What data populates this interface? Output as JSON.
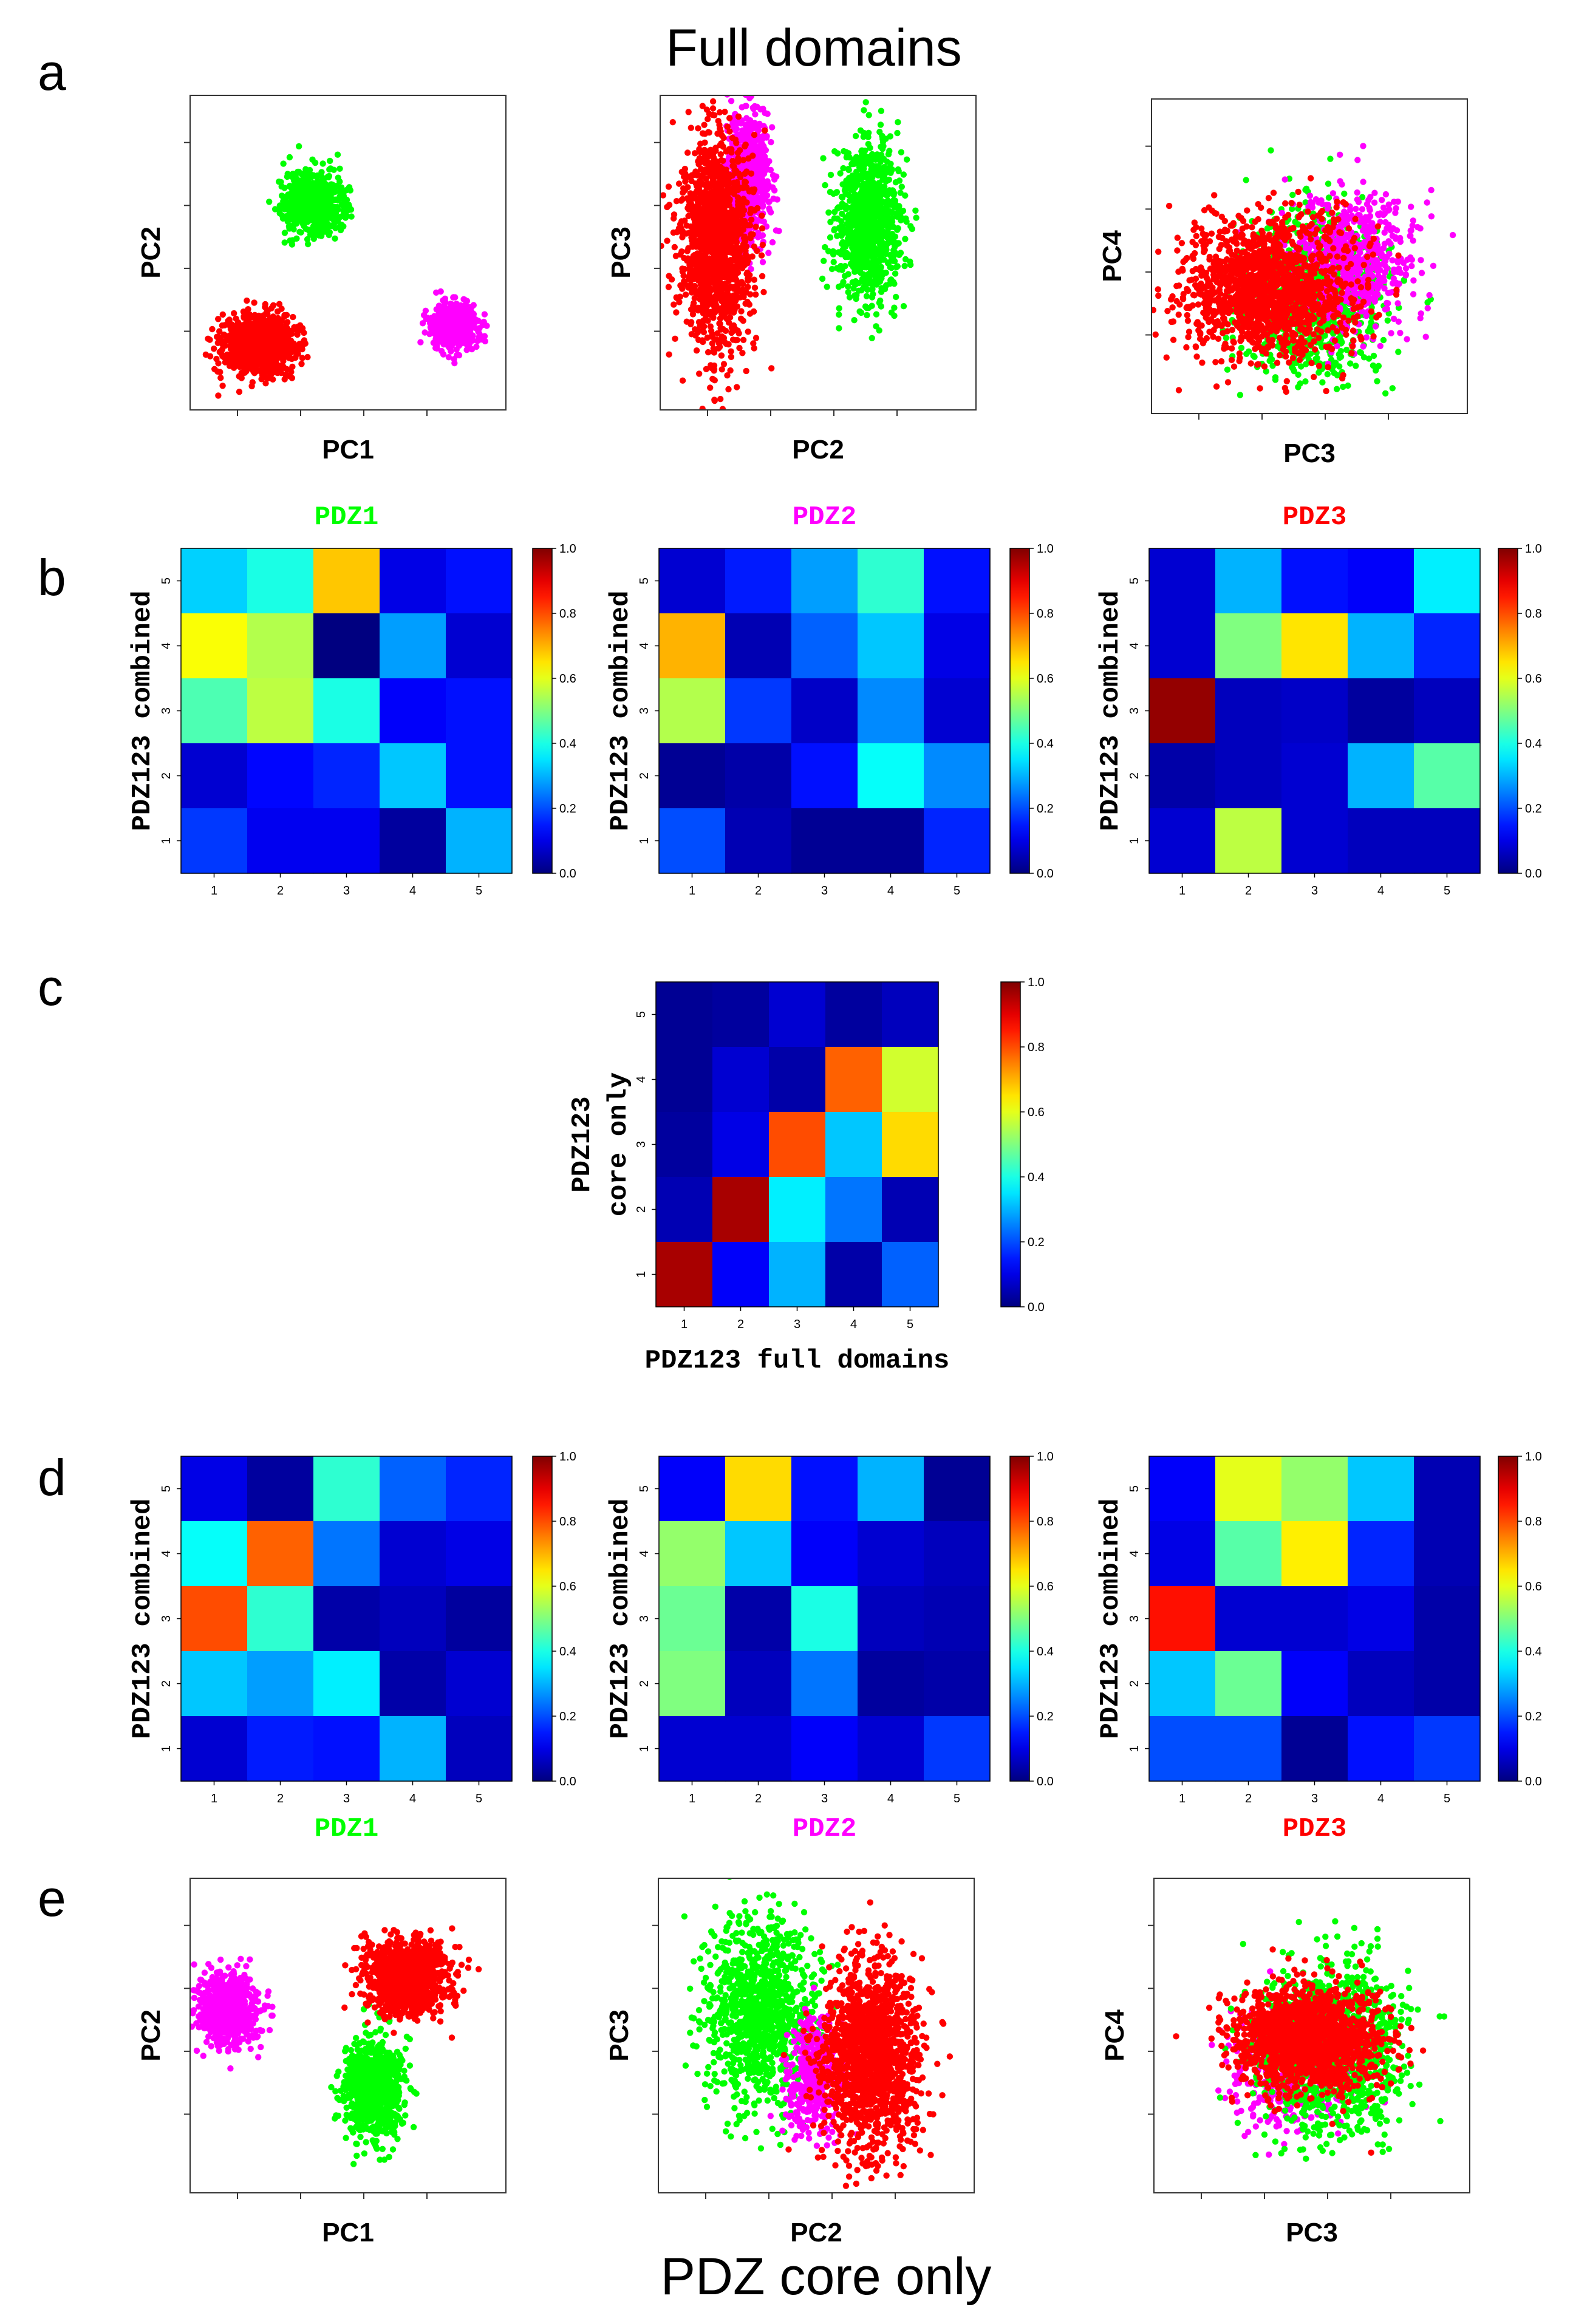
{
  "titles": {
    "top": "Full domains",
    "bottom": "PDZ core only"
  },
  "panel_letters": [
    "a",
    "b",
    "c",
    "d",
    "e"
  ],
  "colors": {
    "PDZ1": "#00ff00",
    "PDZ2": "#ff00ff",
    "PDZ3": "#ff0000"
  },
  "chart_data": [
    {
      "panel": "a",
      "type": "scatter",
      "xlabel": "PC1",
      "ylabel": "PC2",
      "xlim": [
        0,
        10
      ],
      "ylim": [
        0,
        10
      ],
      "ticks_labeled": false,
      "series": [
        {
          "name": "PDZ1",
          "color": "#00ff00",
          "points": 800,
          "center": [
            3.9,
            6.6
          ],
          "spread": [
            0.45,
            0.45
          ]
        },
        {
          "name": "PDZ2",
          "color": "#ff00ff",
          "points": 600,
          "center": [
            8.4,
            2.7
          ],
          "spread": [
            0.35,
            0.35
          ]
        },
        {
          "name": "PDZ3",
          "color": "#ff0000",
          "points": 1100,
          "center": [
            2.2,
            2.1
          ],
          "spread": [
            0.55,
            0.45
          ]
        }
      ]
    },
    {
      "panel": "a",
      "type": "scatter",
      "xlabel": "PC2",
      "ylabel": "PC3",
      "xlim": [
        0,
        10
      ],
      "ylim": [
        0,
        10
      ],
      "ticks_labeled": false,
      "series": [
        {
          "name": "PDZ2",
          "color": "#ff00ff",
          "points": 700,
          "center": [
            2.8,
            7.4
          ],
          "spread": [
            0.35,
            1.1
          ]
        },
        {
          "name": "PDZ1",
          "color": "#00ff00",
          "points": 1000,
          "center": [
            6.6,
            6.0
          ],
          "spread": [
            0.5,
            1.3
          ]
        },
        {
          "name": "PDZ3",
          "color": "#ff0000",
          "points": 1400,
          "center": [
            1.8,
            5.3
          ],
          "spread": [
            0.55,
            1.7
          ]
        }
      ]
    },
    {
      "panel": "a",
      "type": "scatter",
      "xlabel": "PC3",
      "ylabel": "PC4",
      "xlim": [
        0,
        10
      ],
      "ylim": [
        0,
        10
      ],
      "ticks_labeled": false,
      "series": [
        {
          "name": "PDZ1",
          "color": "#00ff00",
          "points": 900,
          "center": [
            5.1,
            3.8
          ],
          "spread": [
            1.1,
            1.3
          ]
        },
        {
          "name": "PDZ2",
          "color": "#ff00ff",
          "points": 600,
          "center": [
            6.4,
            4.9
          ],
          "spread": [
            1.0,
            1.1
          ]
        },
        {
          "name": "PDZ3",
          "color": "#ff0000",
          "points": 1500,
          "center": [
            3.7,
            4.0
          ],
          "spread": [
            1.3,
            1.1
          ]
        }
      ]
    },
    {
      "panel": "b",
      "type": "heatmap",
      "title": "PDZ1",
      "title_color": "#00ff00",
      "xlabel": "",
      "ylabel": "PDZ123 combined",
      "x_ticks": [
        "1",
        "2",
        "3",
        "4",
        "5"
      ],
      "y_ticks": [
        "1",
        "2",
        "3",
        "4",
        "5"
      ],
      "colorbar": {
        "min": 0.0,
        "max": 1.0,
        "ticks": [
          "0.0",
          "0.2",
          "0.4",
          "0.6",
          "0.8",
          "1.0"
        ]
      },
      "rows_top_to_bottom": [
        [
          0.33,
          0.4,
          0.68,
          0.1,
          0.14
        ],
        [
          0.62,
          0.55,
          0.0,
          0.28,
          0.08
        ],
        [
          0.45,
          0.56,
          0.4,
          0.12,
          0.14
        ],
        [
          0.08,
          0.13,
          0.16,
          0.32,
          0.14
        ],
        [
          0.18,
          0.11,
          0.11,
          0.03,
          0.3
        ]
      ]
    },
    {
      "panel": "b",
      "type": "heatmap",
      "title": "PDZ2",
      "title_color": "#ff00ff",
      "xlabel": "",
      "ylabel": "PDZ123 combined",
      "x_ticks": [
        "1",
        "2",
        "3",
        "4",
        "5"
      ],
      "y_ticks": [
        "1",
        "2",
        "3",
        "4",
        "5"
      ],
      "colorbar": {
        "min": 0.0,
        "max": 1.0,
        "ticks": [
          "0.0",
          "0.2",
          "0.4",
          "0.6",
          "0.8",
          "1.0"
        ]
      },
      "rows_top_to_bottom": [
        [
          0.08,
          0.15,
          0.28,
          0.42,
          0.14
        ],
        [
          0.7,
          0.05,
          0.22,
          0.32,
          0.1
        ],
        [
          0.55,
          0.18,
          0.07,
          0.26,
          0.08
        ],
        [
          0.02,
          0.04,
          0.14,
          0.38,
          0.26
        ],
        [
          0.2,
          0.05,
          0.02,
          0.02,
          0.16
        ]
      ]
    },
    {
      "panel": "b",
      "type": "heatmap",
      "title": "PDZ3",
      "title_color": "#ff0000",
      "xlabel": "",
      "ylabel": "PDZ123 combined",
      "x_ticks": [
        "1",
        "2",
        "3",
        "4",
        "5"
      ],
      "y_ticks": [
        "1",
        "2",
        "3",
        "4",
        "5"
      ],
      "colorbar": {
        "min": 0.0,
        "max": 1.0,
        "ticks": [
          "0.0",
          "0.2",
          "0.4",
          "0.6",
          "0.8",
          "1.0"
        ]
      },
      "rows_top_to_bottom": [
        [
          0.08,
          0.3,
          0.14,
          0.12,
          0.36
        ],
        [
          0.08,
          0.5,
          0.65,
          0.3,
          0.16
        ],
        [
          0.98,
          0.06,
          0.07,
          0.03,
          0.06
        ],
        [
          0.04,
          0.06,
          0.08,
          0.3,
          0.46
        ],
        [
          0.08,
          0.56,
          0.08,
          0.06,
          0.06
        ]
      ]
    },
    {
      "panel": "c",
      "type": "heatmap",
      "title": "",
      "xlabel": "PDZ123 full domains",
      "ylabel": [
        "PDZ123",
        "core only"
      ],
      "x_ticks": [
        "1",
        "2",
        "3",
        "4",
        "5"
      ],
      "y_ticks": [
        "1",
        "2",
        "3",
        "4",
        "5"
      ],
      "colorbar": {
        "min": 0.0,
        "max": 1.0,
        "ticks": [
          "0.0",
          "0.2",
          "0.4",
          "0.6",
          "0.8",
          "1.0"
        ]
      },
      "rows_top_to_bottom": [
        [
          0.02,
          0.03,
          0.08,
          0.03,
          0.06
        ],
        [
          0.02,
          0.08,
          0.04,
          0.78,
          0.58
        ],
        [
          0.03,
          0.1,
          0.8,
          0.32,
          0.66
        ],
        [
          0.05,
          0.96,
          0.36,
          0.24,
          0.05
        ],
        [
          0.96,
          0.12,
          0.3,
          0.04,
          0.22
        ]
      ]
    },
    {
      "panel": "d",
      "type": "heatmap",
      "title": "PDZ1",
      "title_color": "#00ff00",
      "xlabel": "",
      "ylabel": "PDZ123 combined",
      "x_ticks": [
        "1",
        "2",
        "3",
        "4",
        "5"
      ],
      "y_ticks": [
        "1",
        "2",
        "3",
        "4",
        "5"
      ],
      "colorbar": {
        "min": 0.0,
        "max": 1.0,
        "ticks": [
          "0.0",
          "0.2",
          "0.4",
          "0.6",
          "0.8",
          "1.0"
        ]
      },
      "rows_top_to_bottom": [
        [
          0.1,
          0.03,
          0.42,
          0.22,
          0.16
        ],
        [
          0.38,
          0.78,
          0.24,
          0.08,
          0.1
        ],
        [
          0.8,
          0.42,
          0.04,
          0.06,
          0.03
        ],
        [
          0.32,
          0.28,
          0.36,
          0.04,
          0.08
        ],
        [
          0.08,
          0.15,
          0.14,
          0.3,
          0.06
        ]
      ]
    },
    {
      "panel": "d",
      "type": "heatmap",
      "title": "PDZ2",
      "title_color": "#ff00ff",
      "xlabel": "",
      "ylabel": "PDZ123 combined",
      "x_ticks": [
        "1",
        "2",
        "3",
        "4",
        "5"
      ],
      "y_ticks": [
        "1",
        "2",
        "3",
        "4",
        "5"
      ],
      "colorbar": {
        "min": 0.0,
        "max": 1.0,
        "ticks": [
          "0.0",
          "0.2",
          "0.4",
          "0.6",
          "0.8",
          "1.0"
        ]
      },
      "rows_top_to_bottom": [
        [
          0.12,
          0.66,
          0.14,
          0.3,
          0.02
        ],
        [
          0.52,
          0.32,
          0.12,
          0.08,
          0.06
        ],
        [
          0.48,
          0.04,
          0.4,
          0.06,
          0.05
        ],
        [
          0.5,
          0.06,
          0.24,
          0.03,
          0.04
        ],
        [
          0.08,
          0.08,
          0.12,
          0.08,
          0.18
        ]
      ]
    },
    {
      "panel": "d",
      "type": "heatmap",
      "title": "PDZ3",
      "title_color": "#ff0000",
      "xlabel": "",
      "ylabel": "PDZ123 combined",
      "x_ticks": [
        "1",
        "2",
        "3",
        "4",
        "5"
      ],
      "y_ticks": [
        "1",
        "2",
        "3",
        "4",
        "5"
      ],
      "colorbar": {
        "min": 0.0,
        "max": 1.0,
        "ticks": [
          "0.0",
          "0.2",
          "0.4",
          "0.6",
          "0.8",
          "1.0"
        ]
      },
      "rows_top_to_bottom": [
        [
          0.12,
          0.6,
          0.52,
          0.32,
          0.05
        ],
        [
          0.1,
          0.46,
          0.64,
          0.16,
          0.05
        ],
        [
          0.86,
          0.08,
          0.08,
          0.1,
          0.04
        ],
        [
          0.32,
          0.48,
          0.12,
          0.06,
          0.04
        ],
        [
          0.2,
          0.2,
          0.02,
          0.14,
          0.18
        ]
      ]
    },
    {
      "panel": "e",
      "type": "scatter",
      "xlabel": "PC1",
      "ylabel": "PC2",
      "xlim": [
        0,
        10
      ],
      "ylim": [
        0,
        10
      ],
      "ticks_labeled": false,
      "series": [
        {
          "name": "PDZ2",
          "color": "#ff00ff",
          "points": 800,
          "center": [
            1.2,
            5.8
          ],
          "spread": [
            0.45,
            0.55
          ]
        },
        {
          "name": "PDZ1",
          "color": "#00ff00",
          "points": 900,
          "center": [
            5.8,
            3.3
          ],
          "spread": [
            0.45,
            0.75
          ]
        },
        {
          "name": "PDZ3",
          "color": "#ff0000",
          "points": 1100,
          "center": [
            6.9,
            6.8
          ],
          "spread": [
            0.65,
            0.55
          ]
        }
      ]
    },
    {
      "panel": "e",
      "type": "scatter",
      "xlabel": "PC2",
      "ylabel": "PC3",
      "xlim": [
        0,
        10
      ],
      "ylim": [
        0,
        10
      ],
      "ticks_labeled": false,
      "series": [
        {
          "name": "PDZ1",
          "color": "#00ff00",
          "points": 1100,
          "center": [
            3.2,
            5.7
          ],
          "spread": [
            0.9,
            1.5
          ]
        },
        {
          "name": "PDZ2",
          "color": "#ff00ff",
          "points": 400,
          "center": [
            4.9,
            3.6
          ],
          "spread": [
            0.45,
            0.9
          ]
        },
        {
          "name": "PDZ3",
          "color": "#ff0000",
          "points": 1500,
          "center": [
            6.7,
            4.3
          ],
          "spread": [
            0.75,
            1.5
          ]
        }
      ]
    },
    {
      "panel": "e",
      "type": "scatter",
      "xlabel": "PC3",
      "ylabel": "PC4",
      "xlim": [
        0,
        10
      ],
      "ylim": [
        0,
        10
      ],
      "ticks_labeled": false,
      "series": [
        {
          "name": "PDZ2",
          "color": "#ff00ff",
          "points": 400,
          "center": [
            4.3,
            3.9
          ],
          "spread": [
            0.9,
            0.9
          ]
        },
        {
          "name": "PDZ1",
          "color": "#00ff00",
          "points": 1000,
          "center": [
            5.7,
            4.6
          ],
          "spread": [
            1.2,
            1.4
          ]
        },
        {
          "name": "PDZ3",
          "color": "#ff0000",
          "points": 1600,
          "center": [
            4.8,
            4.9
          ],
          "spread": [
            1.1,
            0.8
          ]
        }
      ]
    }
  ]
}
